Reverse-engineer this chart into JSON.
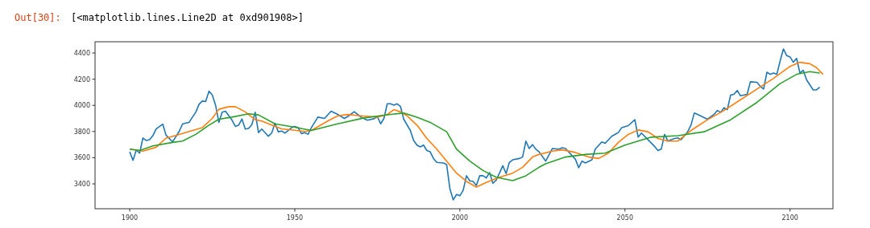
{
  "chart_data": {
    "type": "line",
    "annotations": [
      "Out[30]:",
      "[<matplotlib.lines.Line2D at 0xd901908>]"
    ],
    "xlim": [
      1889.5,
      2113
    ],
    "ylim": [
      3210,
      4486
    ],
    "xticks": [
      1900,
      1950,
      2000,
      2050,
      2100
    ],
    "yticks": [
      3400,
      3600,
      3800,
      4000,
      4200,
      4400
    ],
    "grid": false,
    "marker": "none",
    "line_style": "solid",
    "series": [
      {
        "color": "#1f77b4",
        "x": [
          1900,
          1901,
          1902,
          1903,
          1904,
          1905,
          1906,
          1907,
          1908,
          1910,
          1911,
          1913,
          1915,
          1916,
          1917,
          1918,
          1919,
          1920,
          1921,
          1922,
          1923,
          1924,
          1925,
          1926,
          1927,
          1928,
          1929,
          1930,
          1931,
          1932,
          1933,
          1934,
          1935,
          1936,
          1937,
          1938,
          1939,
          1940,
          1942,
          1943,
          1944,
          1945,
          1946,
          1947,
          1949,
          1950,
          1951,
          1952,
          1953,
          1954,
          1955,
          1957,
          1959,
          1961,
          1963,
          1965,
          1966,
          1968,
          1969,
          1970,
          1972,
          1974,
          1975,
          1976,
          1977,
          1978,
          1979,
          1980,
          1981,
          1982,
          1983,
          1985,
          1986,
          1987,
          1988,
          1989,
          1990,
          1991,
          1992,
          1993,
          1995,
          1996,
          1997,
          1998,
          1999,
          2000,
          2001,
          2002,
          2003,
          2004,
          2005,
          2006,
          2007,
          2008,
          2009,
          2010,
          2011,
          2012,
          2013,
          2014,
          2015,
          2016,
          2018,
          2019,
          2020,
          2021,
          2022,
          2023,
          2024,
          2026,
          2028,
          2030,
          2031,
          2032,
          2035,
          2036,
          2037,
          2038,
          2040,
          2041,
          2043,
          2044,
          2046,
          2048,
          2049,
          2051,
          2053,
          2054,
          2055,
          2057,
          2059,
          2060,
          2061,
          2062,
          2063,
          2065,
          2066,
          2067,
          2069,
          2070,
          2071,
          2072,
          2075,
          2077,
          2078,
          2079,
          2080,
          2081,
          2082,
          2083,
          2084,
          2085,
          2087,
          2088,
          2090,
          2091,
          2092,
          2093,
          2094,
          2095,
          2096,
          2097,
          2098,
          2099,
          2100,
          2101,
          2102,
          2103,
          2104,
          2105,
          2107,
          2108,
          2109
        ],
        "values": [
          3645,
          3580,
          3660,
          3635,
          3751,
          3731,
          3737,
          3768,
          3819,
          3857,
          3772,
          3721,
          3802,
          3857,
          3865,
          3870,
          3910,
          3947,
          4008,
          4033,
          4029,
          4108,
          4080,
          4002,
          3870,
          3947,
          3955,
          3921,
          3886,
          3839,
          3849,
          3896,
          3819,
          3823,
          3853,
          3947,
          3792,
          3819,
          3764,
          3788,
          3863,
          3798,
          3804,
          3788,
          3829,
          3839,
          3829,
          3784,
          3792,
          3778,
          3829,
          3910,
          3900,
          3955,
          3931,
          3900,
          3914,
          3951,
          3931,
          3910,
          3886,
          3898,
          3914,
          3859,
          3900,
          4012,
          4012,
          4002,
          4012,
          3992,
          3894,
          3808,
          3731,
          3696,
          3682,
          3696,
          3655,
          3645,
          3594,
          3564,
          3560,
          3547,
          3360,
          3278,
          3319,
          3309,
          3350,
          3462,
          3423,
          3419,
          3388,
          3462,
          3462,
          3445,
          3486,
          3405,
          3429,
          3482,
          3539,
          3478,
          3564,
          3584,
          3594,
          3605,
          3727,
          3670,
          3700,
          3665,
          3645,
          3574,
          3670,
          3665,
          3676,
          3670,
          3588,
          3523,
          3574,
          3560,
          3584,
          3665,
          3721,
          3710,
          3764,
          3792,
          3829,
          3845,
          3890,
          3757,
          3788,
          3737,
          3686,
          3655,
          3665,
          3778,
          3727,
          3747,
          3751,
          3737,
          3798,
          3849,
          3941,
          3931,
          3894,
          3931,
          3961,
          3947,
          3982,
          3967,
          4078,
          4084,
          4114,
          4073,
          4084,
          4180,
          4176,
          4145,
          4125,
          4253,
          4237,
          4247,
          4237,
          4339,
          4431,
          4380,
          4370,
          4329,
          4359,
          4247,
          4268,
          4196,
          4118,
          4118,
          4139
        ]
      },
      {
        "color": "#ff7f0e",
        "x": [
          1900,
          1904,
          1908,
          1911,
          1914,
          1918,
          1922,
          1925,
          1927,
          1930,
          1932,
          1935,
          1938,
          1940,
          1943,
          1946,
          1950,
          1953,
          1955,
          1960,
          1963,
          1966,
          1970,
          1975,
          1978,
          1980,
          1982,
          1984,
          1987,
          1990,
          1993,
          1996,
          1999,
          2002,
          2005,
          2008,
          2012,
          2016,
          2019,
          2022,
          2024,
          2028,
          2031,
          2035,
          2039,
          2042,
          2045,
          2048,
          2051,
          2054,
          2057,
          2060,
          2063,
          2066,
          2070,
          2075,
          2080,
          2085,
          2090,
          2095,
          2100,
          2103,
          2106,
          2108,
          2110
        ],
        "values": [
          3665,
          3650,
          3680,
          3750,
          3770,
          3800,
          3830,
          3900,
          3970,
          3990,
          3990,
          3950,
          3890,
          3880,
          3850,
          3820,
          3810,
          3800,
          3808,
          3880,
          3920,
          3930,
          3920,
          3910,
          3930,
          3967,
          3950,
          3920,
          3849,
          3747,
          3665,
          3574,
          3482,
          3419,
          3376,
          3411,
          3451,
          3482,
          3527,
          3605,
          3625,
          3650,
          3660,
          3640,
          3605,
          3594,
          3635,
          3717,
          3778,
          3812,
          3798,
          3747,
          3727,
          3727,
          3808,
          3890,
          3961,
          4043,
          4125,
          4206,
          4298,
          4329,
          4318,
          4288,
          4237
        ]
      },
      {
        "color": "#2ca02c",
        "x": [
          1900,
          1903,
          1907,
          1913,
          1916,
          1920,
          1924,
          1927,
          1931,
          1936,
          1939,
          1944,
          1950,
          1955,
          1963,
          1971,
          1979,
          1983,
          1987,
          1991,
          1996,
          1999,
          2003,
          2007,
          2011,
          2016,
          2020,
          2024,
          2026,
          2032,
          2038,
          2044,
          2050,
          2058,
          2066,
          2074,
          2082,
          2090,
          2097,
          2102,
          2106,
          2109
        ],
        "values": [
          3665,
          3655,
          3690,
          3717,
          3727,
          3778,
          3849,
          3894,
          3910,
          3935,
          3927,
          3859,
          3833,
          3808,
          3859,
          3904,
          3931,
          3941,
          3910,
          3870,
          3798,
          3665,
          3574,
          3502,
          3451,
          3425,
          3462,
          3527,
          3554,
          3605,
          3625,
          3635,
          3696,
          3757,
          3768,
          3798,
          3890,
          4023,
          4166,
          4237,
          4257,
          4247
        ]
      }
    ]
  }
}
